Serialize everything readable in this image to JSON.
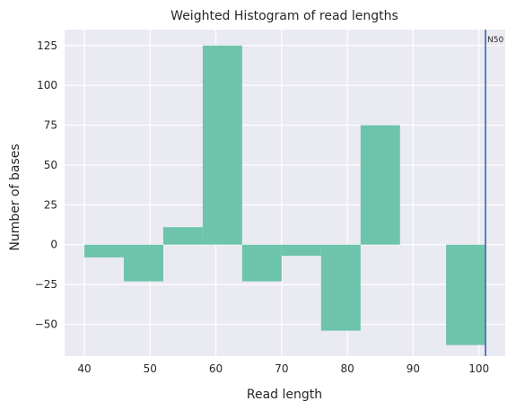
{
  "chart_data": {
    "type": "bar",
    "title": "Weighted Histogram of read lengths",
    "xlabel": "Read length",
    "ylabel": "Number of bases",
    "xlim": [
      37.0,
      104.0
    ],
    "ylim": [
      -70,
      135
    ],
    "xticks": [
      40,
      50,
      60,
      70,
      80,
      90,
      100
    ],
    "yticks": [
      -50,
      -25,
      0,
      25,
      50,
      75,
      100,
      125
    ],
    "grid": true,
    "bins": [
      {
        "x0": 40,
        "x1": 46,
        "value": -8
      },
      {
        "x0": 46,
        "x1": 52,
        "value": -23
      },
      {
        "x0": 52,
        "x1": 58,
        "value": 11
      },
      {
        "x0": 58,
        "x1": 64,
        "value": 125
      },
      {
        "x0": 64,
        "x1": 70,
        "value": -23
      },
      {
        "x0": 70,
        "x1": 76,
        "value": -7
      },
      {
        "x0": 76,
        "x1": 82,
        "value": -54
      },
      {
        "x0": 82,
        "x1": 88,
        "value": 75
      },
      {
        "x0": 88,
        "x1": 95,
        "value": 0
      },
      {
        "x0": 95,
        "x1": 101,
        "value": -63
      }
    ],
    "reference_line": {
      "x": 101,
      "label": "N50",
      "color": "#4c72b0"
    },
    "bar_color": "#66c2a5"
  }
}
